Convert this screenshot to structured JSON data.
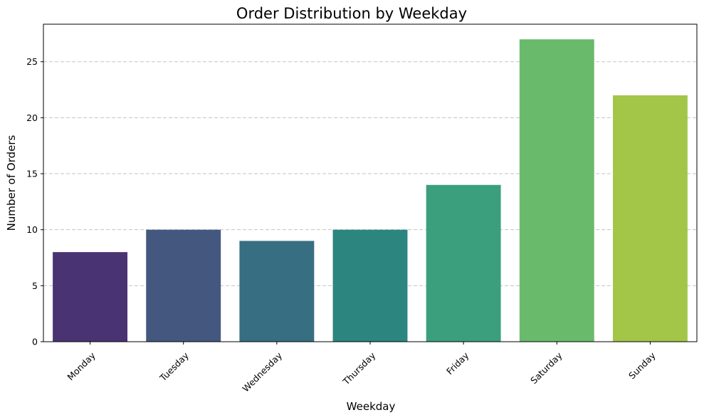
{
  "chart_data": {
    "type": "bar",
    "title": "Order Distribution by Weekday",
    "xlabel": "Weekday",
    "ylabel": "Number of Orders",
    "categories": [
      "Monday",
      "Tuesday",
      "Wednesday",
      "Thursday",
      "Friday",
      "Saturday",
      "Sunday"
    ],
    "values": [
      8,
      10,
      9,
      10,
      14,
      27,
      22
    ],
    "colors": [
      "#4a3372",
      "#44577f",
      "#376e82",
      "#2d8580",
      "#3b9f7d",
      "#6aba6c",
      "#a3c649"
    ],
    "ylim": [
      0,
      28.35
    ],
    "yticks": [
      0,
      5,
      10,
      15,
      20,
      25
    ],
    "grid": "y-dashed",
    "legend": "none"
  }
}
